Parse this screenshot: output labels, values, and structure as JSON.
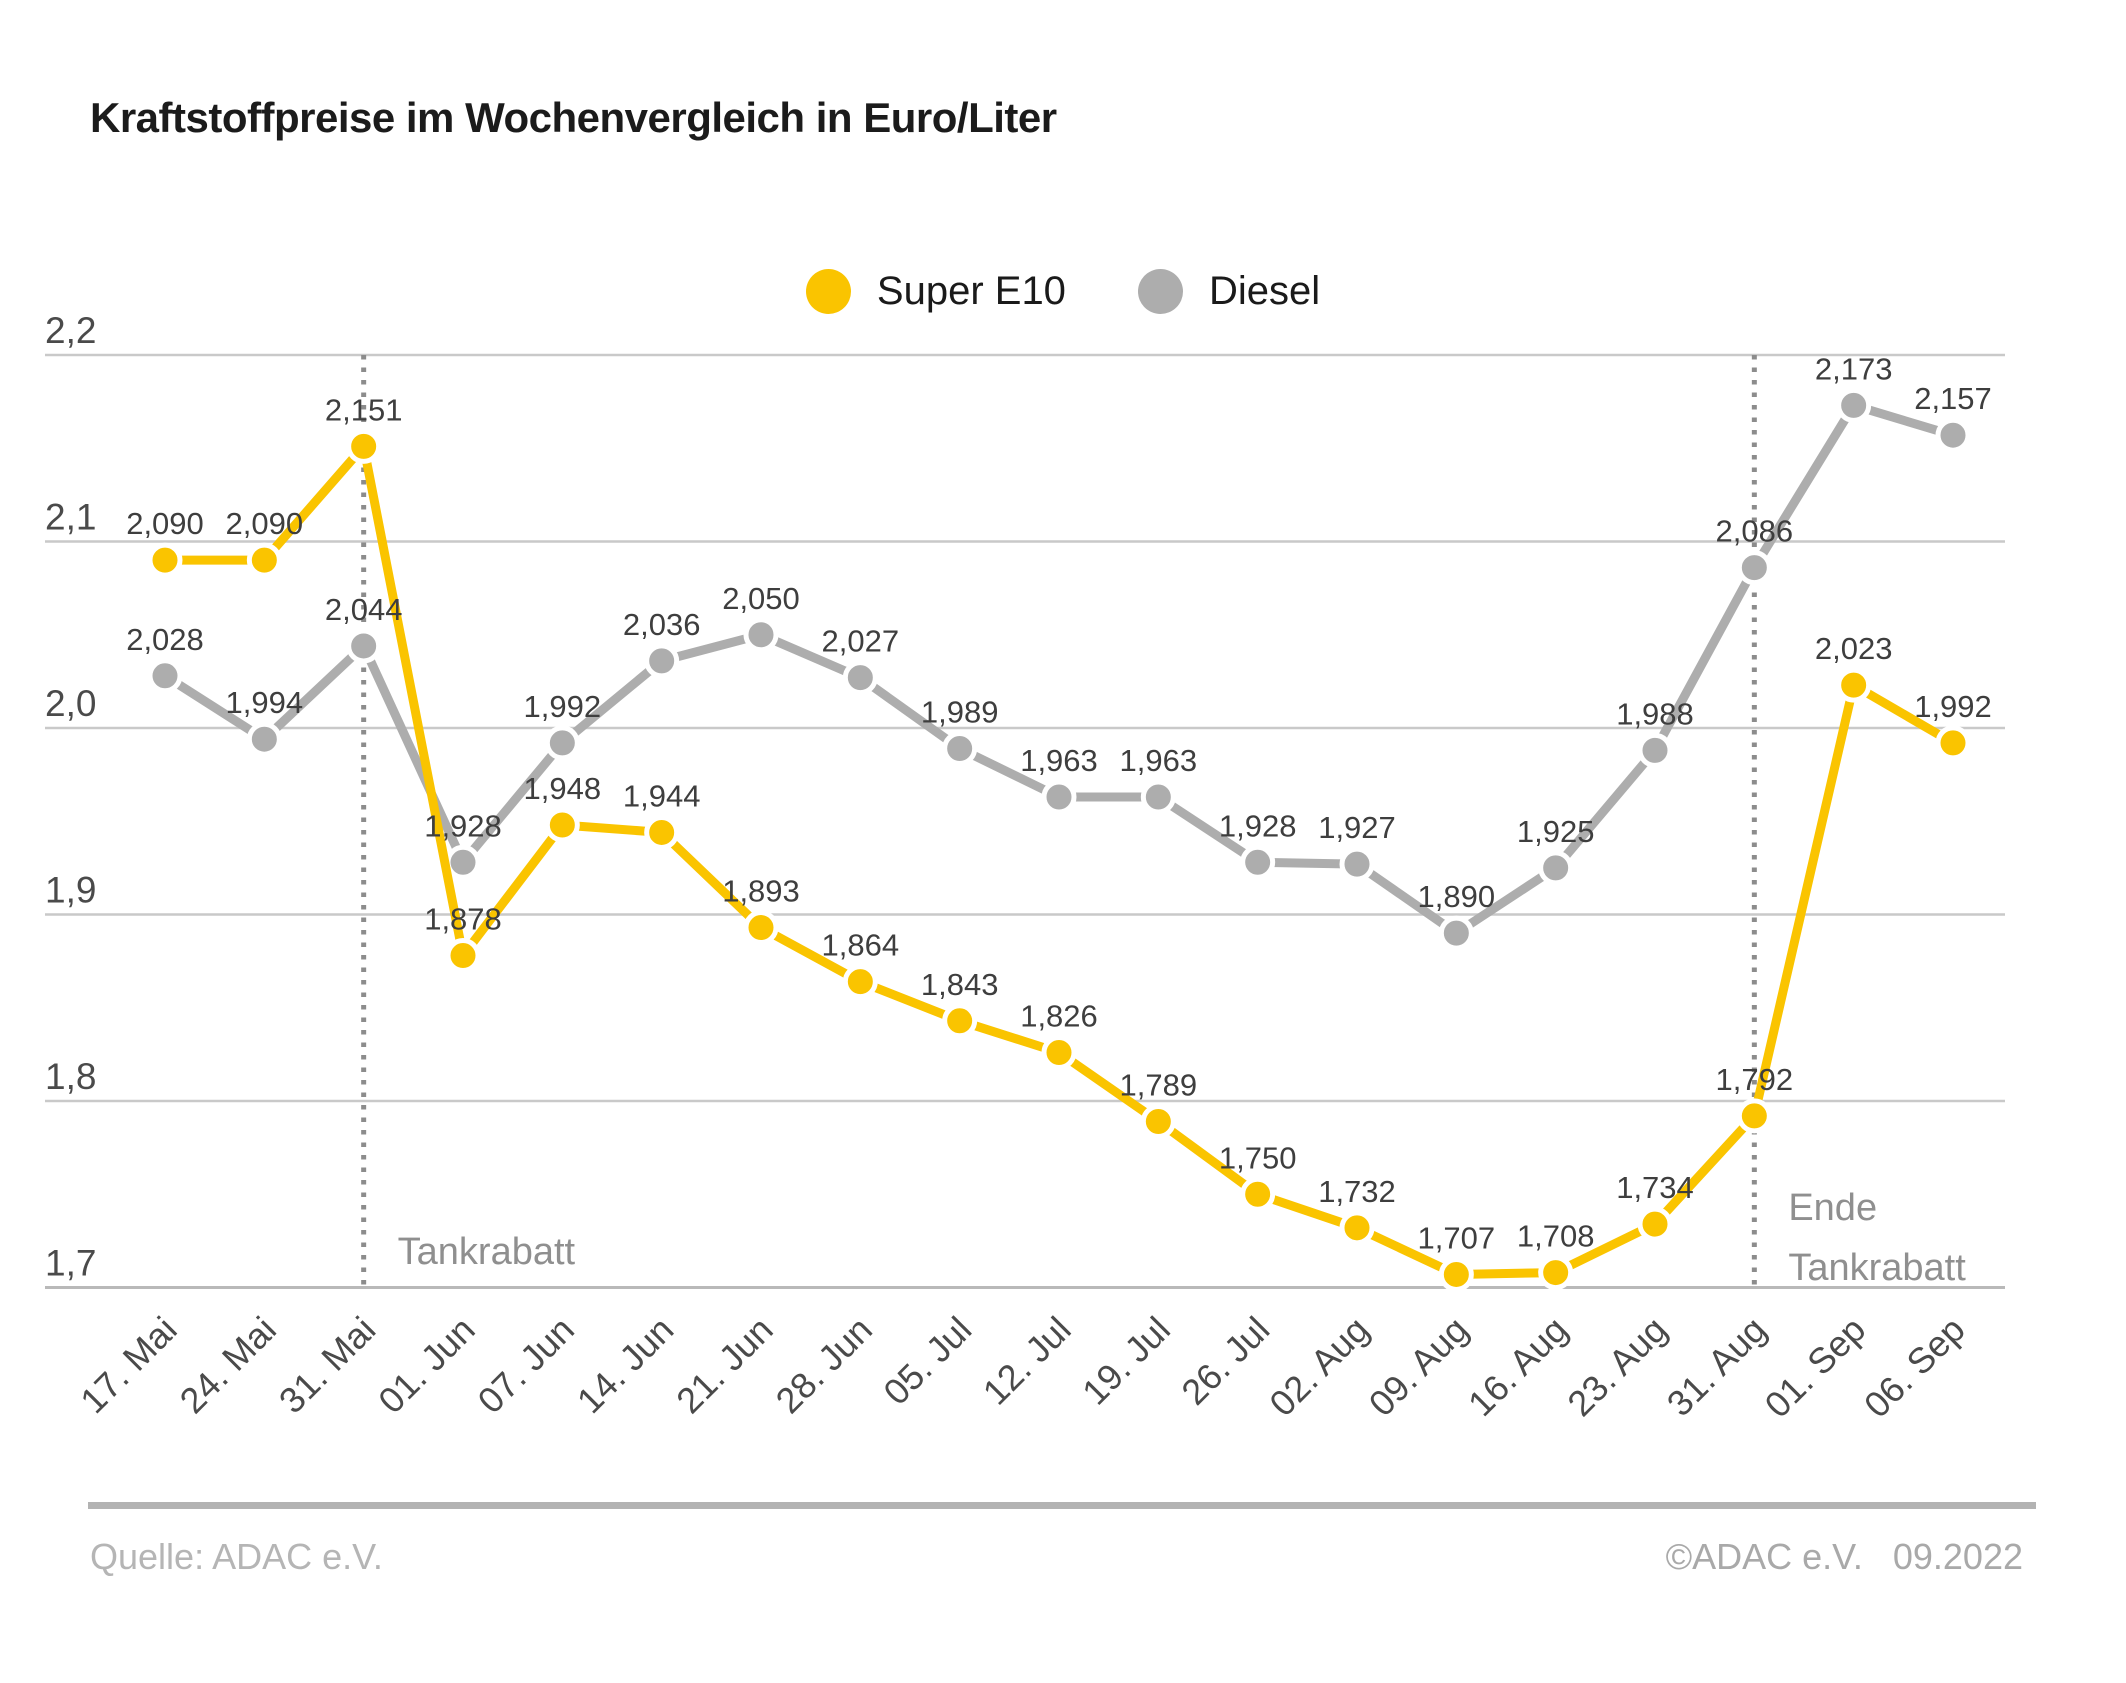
{
  "title": "Kraftstoffpreise im Wochenvergleich in Euro/Liter",
  "legend": {
    "items": [
      {
        "label": "Super E10",
        "color": "#FAC400"
      },
      {
        "label": "Diesel",
        "color": "#ADADAD"
      }
    ]
  },
  "chart_data": {
    "type": "line",
    "title": "Kraftstoffpreise im Wochenvergleich in Euro/Liter",
    "x": [
      "17. Mai",
      "24. Mai",
      "31. Mai",
      "01. Jun",
      "07. Jun",
      "14. Jun",
      "21. Jun",
      "28. Jun",
      "05. Jul",
      "12. Jul",
      "19. Jul",
      "26. Jul",
      "02. Aug",
      "09. Aug",
      "16. Aug",
      "23. Aug",
      "31. Aug",
      "01. Sep",
      "06. Sep"
    ],
    "ylim": [
      1.7,
      2.2
    ],
    "grid": true,
    "legend_position": "top-center",
    "yticks": [
      {
        "label": "2,2",
        "value": 2.2
      },
      {
        "label": "2,1",
        "value": 2.1
      },
      {
        "label": "2,0",
        "value": 2.0
      },
      {
        "label": "1,9",
        "value": 1.9
      },
      {
        "label": "1,8",
        "value": 1.8
      },
      {
        "label": "1,7",
        "value": 1.7
      }
    ],
    "series": [
      {
        "name": "Super E10",
        "color": "#FAC400",
        "values": [
          2.09,
          2.09,
          2.151,
          1.878,
          1.948,
          1.944,
          1.893,
          1.864,
          1.843,
          1.826,
          1.789,
          1.75,
          1.732,
          1.707,
          1.708,
          1.734,
          1.792,
          2.023,
          1.992
        ],
        "labels": [
          "2,090",
          "2,090",
          "2,151",
          "1,878",
          "1,948",
          "1,944",
          "1,893",
          "1,864",
          "1,843",
          "1,826",
          "1,789",
          "1,750",
          "1,732",
          "1,707",
          "1,708",
          "1,734",
          "1,792",
          "2,023",
          "1,992"
        ]
      },
      {
        "name": "Diesel",
        "color": "#ADADAD",
        "values": [
          2.028,
          1.994,
          2.044,
          1.928,
          1.992,
          2.036,
          2.05,
          2.027,
          1.989,
          1.963,
          1.963,
          1.928,
          1.927,
          1.89,
          1.925,
          1.988,
          2.086,
          2.173,
          2.157
        ],
        "labels": [
          "2,028",
          "1,994",
          "2,044",
          "1,928",
          "1,992",
          "2,036",
          "2,050",
          "2,027",
          "1,989",
          "1,963",
          "1,963",
          "1,928",
          "1,927",
          "1,890",
          "1,925",
          "1,988",
          "2,086",
          "2,173",
          "2,157"
        ]
      }
    ],
    "annotations": [
      {
        "x_index": 2,
        "x_label": "31. Mai",
        "lines": [
          "Tankrabatt"
        ]
      },
      {
        "x_index": 16,
        "x_label": "31. Aug",
        "lines": [
          "Ende",
          "Tankrabatt"
        ]
      }
    ]
  },
  "colors": {
    "super_e10": "#FAC400",
    "diesel": "#ADADAD",
    "gridline": "#C9C9C9",
    "axis_line": "#B9B9B9",
    "dotted_marker": "#8C8C8C",
    "value_label": "#3E3E3E",
    "tick_label": "#4A4A4A",
    "annotation_text": "#8F8F8F",
    "title_text": "#1B1B1B",
    "footer_text": "#B5B5B5"
  },
  "footer": {
    "source": "Quelle: ADAC e.V.",
    "copyright": "©ADAC e.V.",
    "date": "09.2022"
  }
}
